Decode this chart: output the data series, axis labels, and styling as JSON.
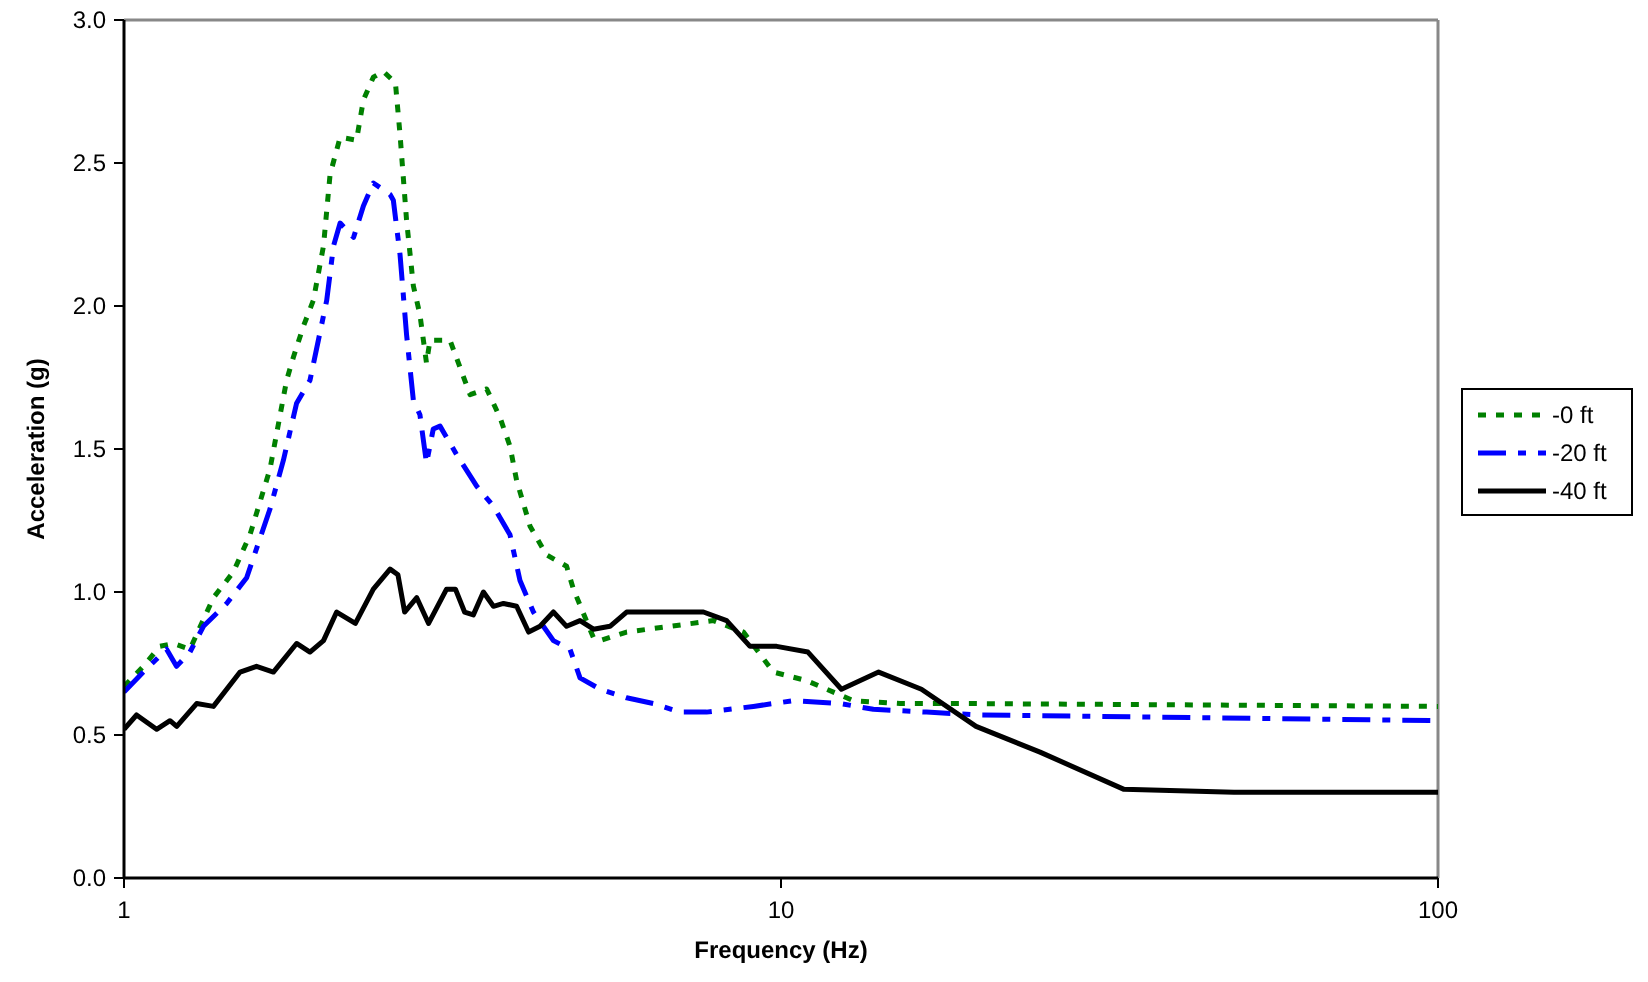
{
  "chart_data": {
    "type": "line",
    "xlabel": "Frequency (Hz)",
    "ylabel": "Acceleration (g)",
    "log": "x",
    "xlim": [
      1,
      100
    ],
    "xticks": [
      1,
      10,
      100
    ],
    "ylim": [
      0,
      3
    ],
    "yticks": [
      {
        "value": 0,
        "label": "0.0"
      },
      {
        "value": 0.5,
        "label": "0.5"
      },
      {
        "value": 1,
        "label": "1.0"
      },
      {
        "value": 1.5,
        "label": "1.5"
      },
      {
        "value": 2,
        "label": "2.0"
      },
      {
        "value": 2.5,
        "label": "2.5"
      },
      {
        "value": 3,
        "label": "3.0"
      }
    ],
    "grid": false,
    "legend": "right",
    "marker": "none",
    "series": [
      {
        "name": "-0 ft",
        "color": "#008000",
        "line_style": "dotted",
        "x": [
          1.0,
          1.07,
          1.134,
          1.189,
          1.26,
          1.368,
          1.467,
          1.555,
          1.668,
          1.768,
          1.81,
          1.876,
          1.942,
          2.012,
          2.059,
          2.133,
          2.259,
          2.314,
          2.396,
          2.482,
          2.589,
          2.631,
          2.692,
          2.757,
          2.821,
          2.887,
          2.922,
          3.135,
          3.363,
          3.565,
          3.735,
          3.868,
          3.959,
          4.15,
          4.396,
          4.717,
          4.831,
          5.183,
          5.304,
          5.821,
          7.889,
          8.767,
          9.737,
          10.94,
          12.89,
          15.18,
          19.16,
          100
        ],
        "values": [
          0.67,
          0.74,
          0.81,
          0.82,
          0.8,
          0.98,
          1.07,
          1.2,
          1.43,
          1.74,
          1.82,
          1.93,
          2.02,
          2.21,
          2.46,
          2.59,
          2.58,
          2.72,
          2.8,
          2.82,
          2.78,
          2.6,
          2.3,
          2.07,
          1.97,
          1.8,
          1.88,
          1.88,
          1.69,
          1.71,
          1.61,
          1.51,
          1.39,
          1.23,
          1.13,
          1.09,
          1.01,
          0.84,
          0.83,
          0.86,
          0.9,
          0.86,
          0.72,
          0.69,
          0.62,
          0.61,
          0.61,
          0.6
        ]
      },
      {
        "name": "-20 ft",
        "color": "#0000ff",
        "line_style": "dashed",
        "x": [
          1.0,
          1.07,
          1.161,
          1.202,
          1.26,
          1.321,
          1.433,
          1.537,
          1.668,
          1.748,
          1.831,
          1.919,
          2.035,
          2.084,
          2.133,
          2.236,
          2.314,
          2.396,
          2.541,
          2.57,
          2.631,
          2.692,
          2.757,
          2.821,
          2.887,
          2.956,
          3.027,
          3.209,
          3.442,
          3.65,
          3.868,
          4.006,
          4.199,
          4.504,
          4.773,
          4.944,
          5.304,
          5.821,
          6.395,
          7.02,
          7.704,
          9.079,
          10.44,
          12.3,
          13.82,
          16.66,
          20.09,
          100
        ],
        "values": [
          0.65,
          0.72,
          0.8,
          0.74,
          0.79,
          0.88,
          0.96,
          1.05,
          1.29,
          1.46,
          1.66,
          1.74,
          2.02,
          2.21,
          2.29,
          2.24,
          2.35,
          2.43,
          2.39,
          2.37,
          2.18,
          1.9,
          1.67,
          1.62,
          1.45,
          1.57,
          1.58,
          1.48,
          1.37,
          1.3,
          1.2,
          1.04,
          0.93,
          0.83,
          0.8,
          0.7,
          0.66,
          0.63,
          0.61,
          0.58,
          0.58,
          0.6,
          0.62,
          0.61,
          0.59,
          0.58,
          0.57,
          0.55
        ]
      },
      {
        "name": "-40 ft",
        "color": "#000000",
        "line_style": "solid",
        "x": [
          1.0,
          1.045,
          1.121,
          1.175,
          1.203,
          1.29,
          1.368,
          1.502,
          1.591,
          1.688,
          1.831,
          1.919,
          2.012,
          2.107,
          2.25,
          2.396,
          2.541,
          2.612,
          2.674,
          2.79,
          2.908,
          3.097,
          3.195,
          3.299,
          3.402,
          3.524,
          3.65,
          3.781,
          3.959,
          4.129,
          4.298,
          4.504,
          4.717,
          4.944,
          5.183,
          5.492,
          5.821,
          7.62,
          8.266,
          8.972,
          9.85,
          10.99,
          12.36,
          14.08,
          16.36,
          19.81,
          24.79,
          33.27,
          48.92,
          100
        ],
        "values": [
          0.52,
          0.57,
          0.52,
          0.55,
          0.53,
          0.61,
          0.6,
          0.72,
          0.74,
          0.72,
          0.82,
          0.79,
          0.83,
          0.93,
          0.89,
          1.01,
          1.08,
          1.06,
          0.93,
          0.98,
          0.89,
          1.01,
          1.01,
          0.93,
          0.92,
          1.0,
          0.95,
          0.96,
          0.95,
          0.86,
          0.88,
          0.93,
          0.88,
          0.9,
          0.87,
          0.88,
          0.93,
          0.93,
          0.9,
          0.81,
          0.81,
          0.79,
          0.66,
          0.72,
          0.66,
          0.53,
          0.44,
          0.31,
          0.3,
          0.3
        ]
      }
    ]
  }
}
